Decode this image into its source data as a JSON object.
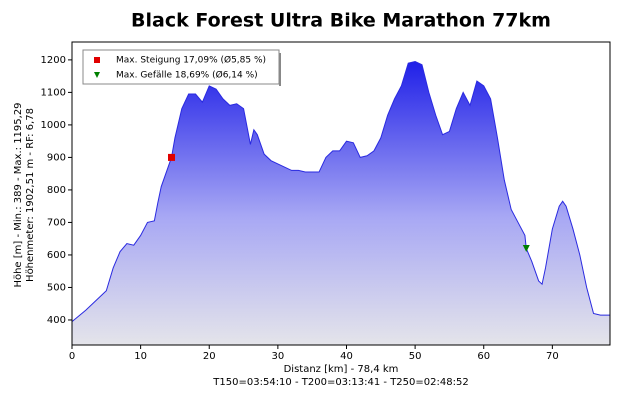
{
  "chart_data": {
    "type": "area",
    "title": "Black Forest Ultra Bike Marathon 77km",
    "x_label": "Distanz [km] - 78,4 km",
    "x_label_2": "T150=03:54:10 - T200=03:13:41 - T250=02:48:52",
    "y_label": "Höhe [m] - Min.: 389 - Max.: 1195,29",
    "y_label_2": "Höhenmeter: 1902,51 m - RF: 6,78",
    "color": "#2a2ae0",
    "x": [
      0,
      2,
      4,
      5,
      6,
      7,
      8,
      9,
      10,
      11,
      12,
      12.5,
      13,
      14,
      14.5,
      15,
      16,
      17,
      18,
      19,
      20,
      21,
      22,
      23,
      24,
      25,
      26,
      26.5,
      27,
      28,
      29,
      30,
      31,
      32,
      33,
      34,
      35,
      36,
      37,
      38,
      39,
      40,
      41,
      42,
      43,
      44,
      45,
      46,
      47,
      48,
      49,
      50,
      51,
      52,
      53,
      54,
      55,
      56,
      57,
      58,
      59,
      60,
      61,
      62,
      63,
      64,
      65,
      66,
      66.2,
      67,
      68,
      68.5,
      69,
      70,
      71,
      71.5,
      72,
      73,
      74,
      75,
      76,
      77,
      78.4
    ],
    "values": [
      395,
      430,
      470,
      490,
      560,
      610,
      635,
      630,
      660,
      700,
      705,
      760,
      810,
      870,
      900,
      960,
      1050,
      1095,
      1095,
      1070,
      1120,
      1110,
      1080,
      1060,
      1065,
      1050,
      940,
      985,
      970,
      910,
      890,
      880,
      870,
      860,
      860,
      855,
      855,
      855,
      900,
      920,
      920,
      950,
      945,
      900,
      905,
      920,
      960,
      1030,
      1080,
      1120,
      1190,
      1195,
      1185,
      1100,
      1030,
      970,
      980,
      1050,
      1100,
      1060,
      1135,
      1120,
      1080,
      960,
      830,
      740,
      700,
      660,
      620,
      580,
      520,
      510,
      560,
      680,
      750,
      765,
      750,
      680,
      600,
      500,
      420,
      415,
      415
    ],
    "markers": [
      {
        "name": "Max. Steigung 17,09% (Ø5,85 %)",
        "x": 14.5,
        "value": 900,
        "color": "#e00000",
        "shape": "square"
      },
      {
        "name": "Max. Gefälle 18,69% (Ø6,14 %)",
        "x": 66.2,
        "value": 620,
        "color": "#008000",
        "shape": "triangle"
      }
    ],
    "xlim": [
      0,
      78.4
    ],
    "xticks": [
      0,
      10,
      20,
      30,
      40,
      50,
      60,
      70
    ],
    "ylim": [
      323,
      1255
    ],
    "yticks": [
      400,
      500,
      600,
      700,
      800,
      900,
      1000,
      1100,
      1200
    ],
    "grid": false
  }
}
